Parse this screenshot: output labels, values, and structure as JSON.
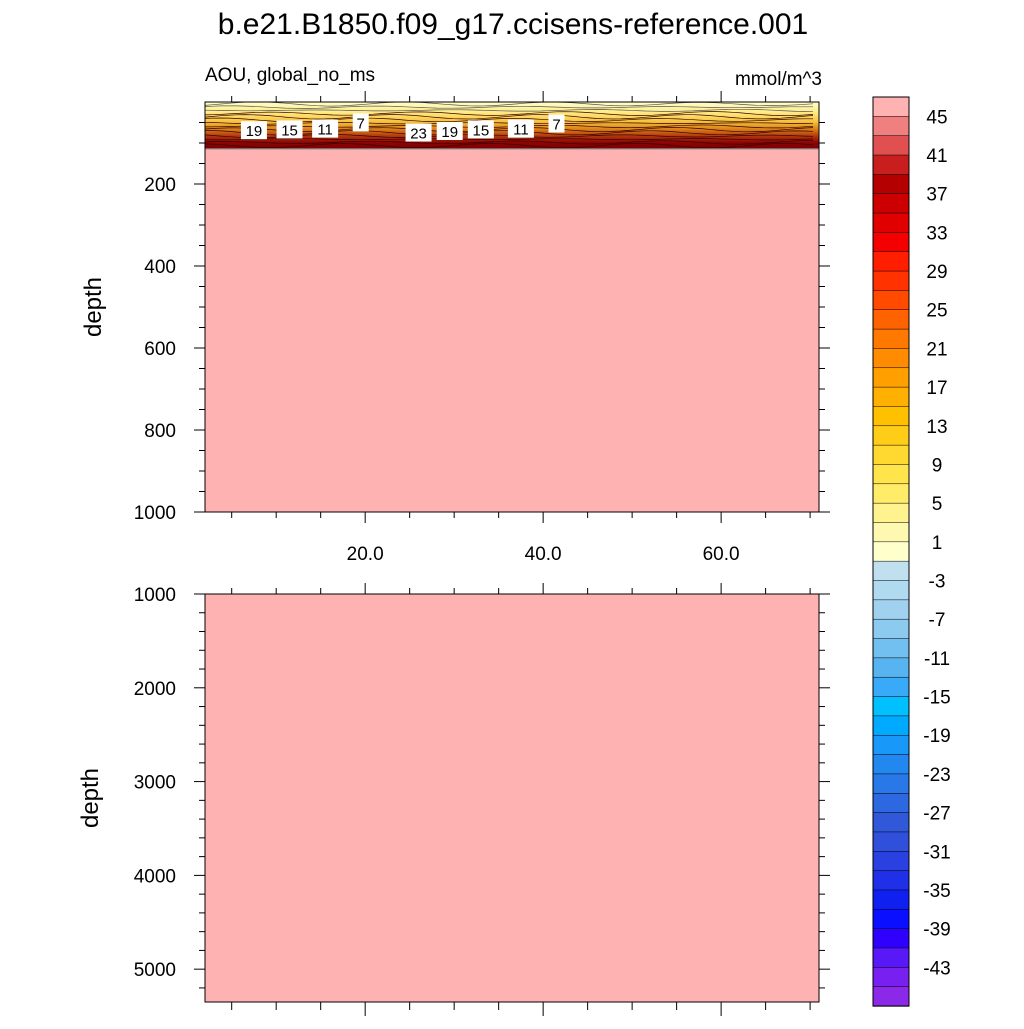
{
  "title": "b.e21.B1850.f09_g17.ccisens-reference.001",
  "chart_data": [
    {
      "type": "heatmap",
      "panel": "upper",
      "left_label": "AOU, global_no_ms",
      "right_label": "mmol/m^3",
      "ylabel": "depth",
      "ylim": [
        1000,
        0
      ],
      "yticks": [
        "200",
        "400",
        "600",
        "800",
        "1000"
      ],
      "xlim": [
        2,
        71
      ],
      "xticks": [
        "20.0",
        "40.0",
        "60.0"
      ],
      "grid": false,
      "fill_below_depth": 120,
      "fill_value": 47,
      "contour_labels": [
        {
          "x": 7.5,
          "depth": 72,
          "text": "19"
        },
        {
          "x": 11.5,
          "depth": 70,
          "text": "15"
        },
        {
          "x": 15.5,
          "depth": 68,
          "text": "11"
        },
        {
          "x": 19.5,
          "depth": 52,
          "text": "7"
        },
        {
          "x": 26.0,
          "depth": 78,
          "text": "23"
        },
        {
          "x": 29.5,
          "depth": 74,
          "text": "19"
        },
        {
          "x": 33.0,
          "depth": 70,
          "text": "15"
        },
        {
          "x": 37.5,
          "depth": 68,
          "text": "11"
        },
        {
          "x": 41.5,
          "depth": 55,
          "text": "7"
        }
      ]
    },
    {
      "type": "heatmap",
      "panel": "lower",
      "ylabel": "depth",
      "ylim": [
        5350,
        1000
      ],
      "yticks": [
        "1000",
        "2000",
        "3000",
        "4000",
        "5000"
      ],
      "xlim": [
        2,
        71
      ],
      "grid": false,
      "fill_value": 47
    }
  ],
  "colorbar": {
    "labels": [
      "45",
      "41",
      "37",
      "33",
      "29",
      "25",
      "21",
      "17",
      "13",
      "9",
      "5",
      "1",
      "-3",
      "-7",
      "-11",
      "-15",
      "-19",
      "-23",
      "-27",
      "-31",
      "-35",
      "-39",
      "-43"
    ],
    "colors": [
      "#feb2b2",
      "#f08080",
      "#e05050",
      "#c81e1e",
      "#b40000",
      "#cc0000",
      "#e00000",
      "#f40000",
      "#ff1e00",
      "#ff3200",
      "#ff4a00",
      "#ff6200",
      "#ff7800",
      "#ff8c00",
      "#ffa000",
      "#ffb000",
      "#ffc000",
      "#ffcc18",
      "#ffd830",
      "#ffe44c",
      "#ffec68",
      "#fff390",
      "#fff8b0",
      "#ffffcc",
      "#c0e0f0",
      "#b0daf0",
      "#a0d2f0",
      "#8ccaf0",
      "#72c0f0",
      "#58b4f0",
      "#38aaf8",
      "#00c0ff",
      "#00aaff",
      "#1898f8",
      "#2288f0",
      "#2878e8",
      "#2e68e0",
      "#3058d8",
      "#3050dc",
      "#2a40e0",
      "#2030e8",
      "#1020f0",
      "#0a10ff",
      "#3000ff",
      "#5818f8",
      "#7820f0",
      "#8c28e8"
    ]
  }
}
